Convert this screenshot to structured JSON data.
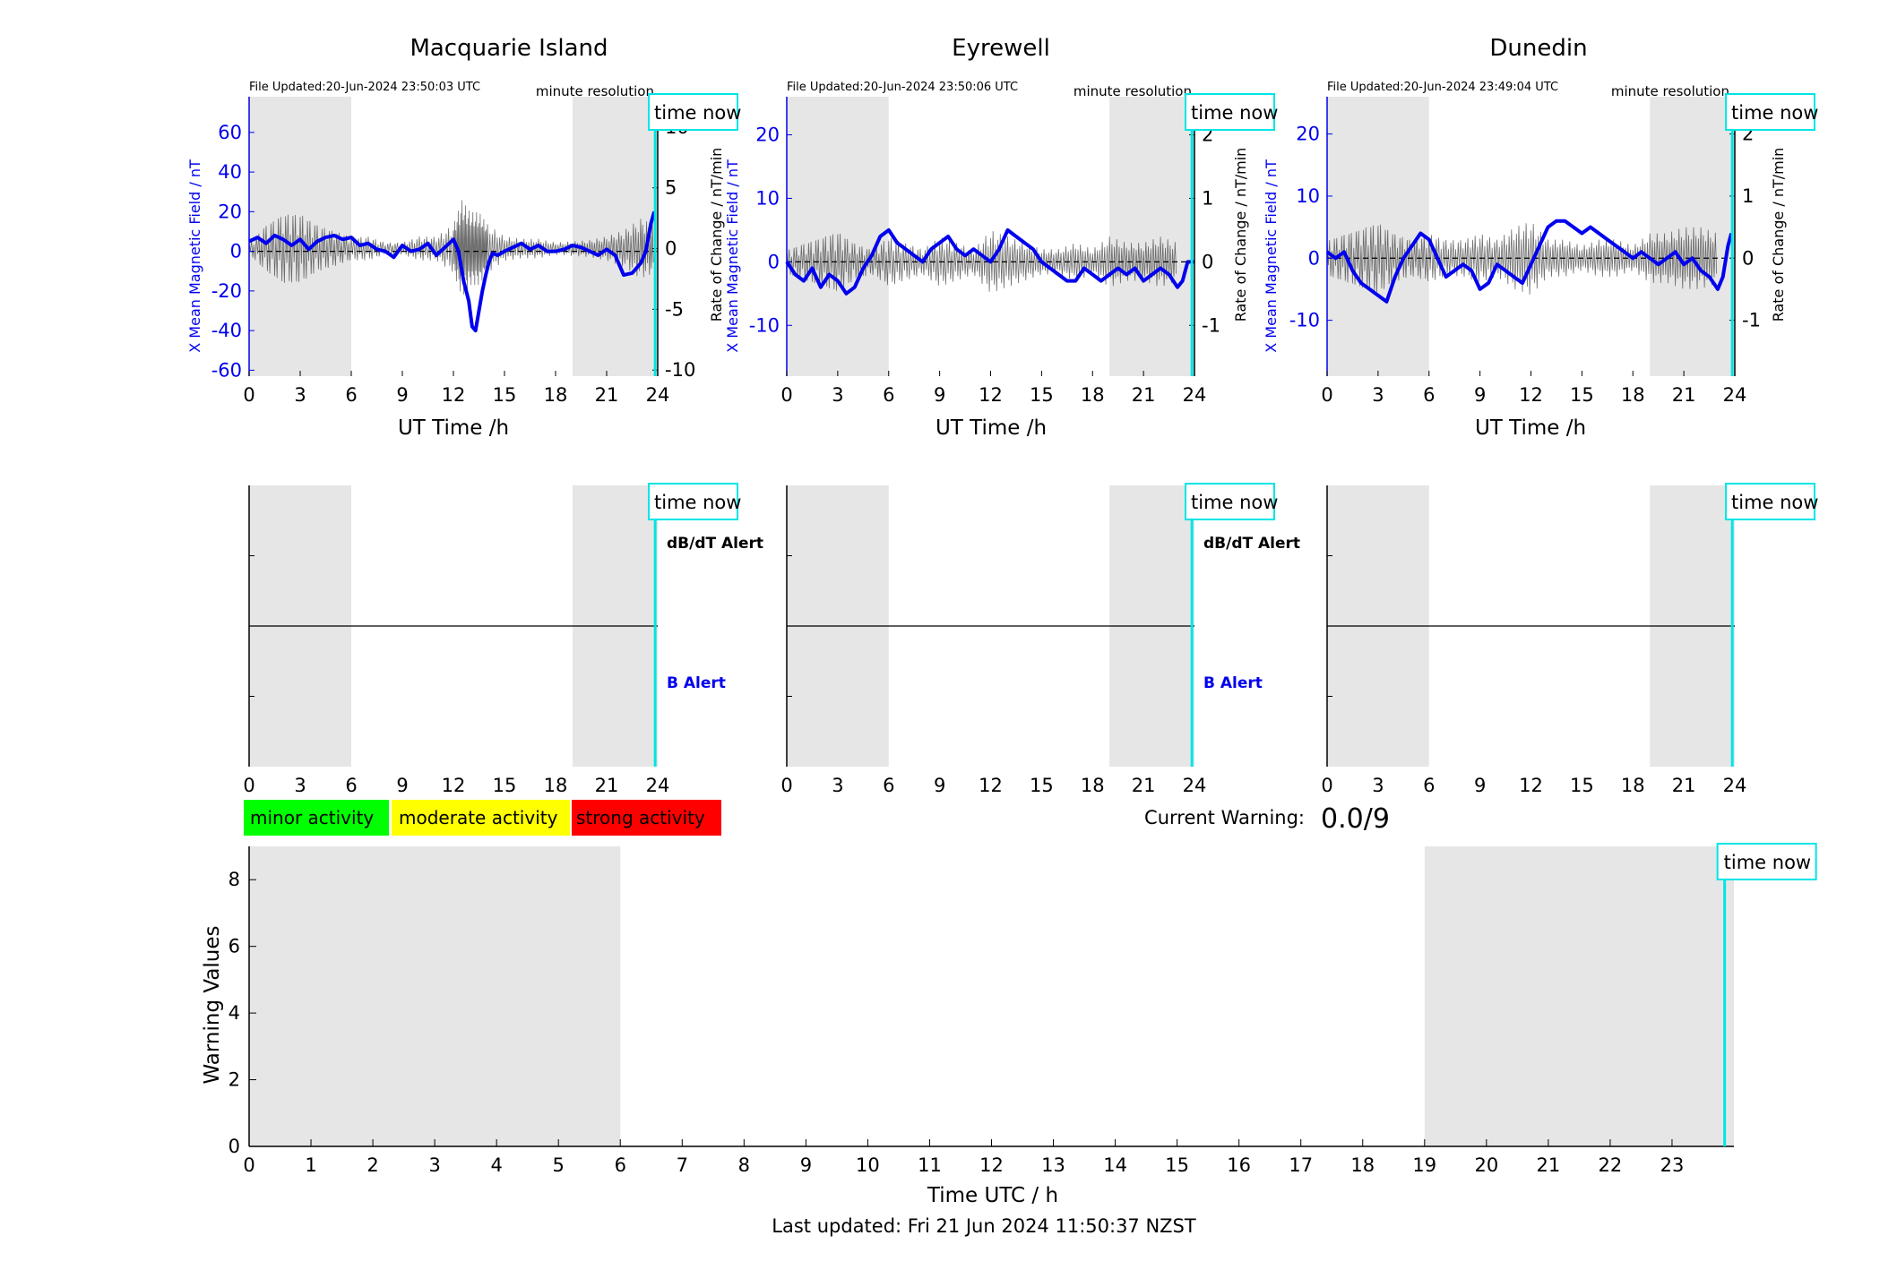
{
  "figure": {
    "last_updated": "Last updated: Fri 21 Jun 2024 11:50:37 NZST",
    "current_warning_label": "Current Warning:",
    "current_warning_value": "0.0/9",
    "time_now_label": "time now",
    "dbdt_alert_label": "dB/dT Alert",
    "b_alert_label": "B Alert",
    "colors": {
      "shade": "#e6e6e6",
      "time_now": "#00e5e5",
      "mean_field": "#0000ee",
      "rate": "#404040",
      "minor": "#00ff00",
      "moderate": "#ffff00",
      "strong": "#ff0000"
    }
  },
  "legend": {
    "minor": "minor activity",
    "moderate": "moderate activity",
    "strong": "strong activity"
  },
  "chart_data": [
    {
      "type": "line",
      "title": "Macquarie Island",
      "file_updated": "File Updated:20-Jun-2024 23:50:03 UTC",
      "resolution": "minute resolution",
      "xlabel": "UT Time /h",
      "ylabel": "X Mean Magnetic Field / nT",
      "y2label": "Rate of Change / nT/min",
      "xlim": [
        0,
        24
      ],
      "xticks": [
        0,
        3,
        6,
        9,
        12,
        15,
        18,
        21,
        24
      ],
      "ylim": [
        -63,
        78
      ],
      "yticks": [
        -60,
        -40,
        -20,
        0,
        20,
        40,
        60
      ],
      "y2lim": [
        -10.5,
        12.5
      ],
      "y2ticks": [
        -10,
        -5,
        0,
        5,
        10
      ],
      "night_shading": [
        [
          0,
          6
        ],
        [
          19,
          24
        ]
      ],
      "time_now": 23.85,
      "series": [
        {
          "axis": "left",
          "x": [
            0,
            0.5,
            1,
            1.5,
            2,
            2.5,
            3,
            3.5,
            4,
            4.5,
            5,
            5.5,
            6,
            6.5,
            7,
            7.5,
            8,
            8.5,
            9,
            9.5,
            10,
            10.5,
            11,
            11.5,
            12,
            12.3,
            12.6,
            12.9,
            13.1,
            13.3,
            13.5,
            13.7,
            13.9,
            14.1,
            14.3,
            14.6,
            15,
            15.5,
            16,
            16.5,
            17,
            17.5,
            18,
            18.5,
            19,
            19.5,
            20,
            20.5,
            21,
            21.5,
            22,
            22.5,
            23,
            23.3,
            23.6,
            23.8
          ],
          "y": [
            5,
            7,
            4,
            8,
            6,
            3,
            6,
            1,
            5,
            7,
            8,
            6,
            7,
            3,
            4,
            1,
            0,
            -3,
            3,
            0,
            1,
            4,
            -2,
            2,
            6,
            0,
            -15,
            -25,
            -38,
            -40,
            -30,
            -20,
            -12,
            -5,
            -1,
            -2,
            0,
            2,
            4,
            1,
            3,
            0,
            0,
            1,
            3,
            2,
            0,
            -2,
            1,
            -2,
            -12,
            -11,
            -6,
            0,
            14,
            20
          ]
        },
        {
          "axis": "right",
          "note": "rate of change, approximate envelope",
          "x": [
            0,
            1,
            2,
            3,
            4,
            5,
            6,
            7,
            8,
            9,
            10,
            11,
            12,
            12.5,
            13,
            13.5,
            14,
            15,
            16,
            17,
            18,
            19,
            20,
            21,
            22,
            23,
            23.8
          ],
          "y": [
            0.5,
            -2,
            3,
            -3,
            2,
            -1.5,
            1,
            -1,
            0.5,
            -0.5,
            1,
            -1,
            2,
            -4,
            3,
            -3,
            2,
            -1,
            0.8,
            -0.8,
            0.5,
            -0.6,
            0.7,
            -1,
            1.5,
            -2.5,
            2
          ]
        }
      ]
    },
    {
      "type": "line",
      "title": "Eyrewell",
      "file_updated": "File Updated:20-Jun-2024 23:50:06 UTC",
      "resolution": "minute resolution",
      "xlabel": "UT Time /h",
      "ylabel": "X Mean Magnetic Field / nT",
      "y2label": "Rate of Change / nT/min",
      "xlim": [
        0,
        24
      ],
      "xticks": [
        0,
        3,
        6,
        9,
        12,
        15,
        18,
        21,
        24
      ],
      "ylim": [
        -18,
        26
      ],
      "yticks": [
        -10,
        0,
        10,
        20
      ],
      "y2lim": [
        -1.8,
        2.6
      ],
      "y2ticks": [
        -1,
        0,
        1,
        2
      ],
      "night_shading": [
        [
          0,
          6
        ],
        [
          19,
          24
        ]
      ],
      "time_now": 23.85,
      "series": [
        {
          "axis": "left",
          "x": [
            0,
            0.5,
            1,
            1.5,
            2,
            2.5,
            3,
            3.5,
            4,
            4.5,
            5,
            5.5,
            6,
            6.5,
            7,
            7.5,
            8,
            8.5,
            9,
            9.5,
            10,
            10.5,
            11,
            11.5,
            12,
            12.5,
            13,
            13.5,
            14,
            14.5,
            15,
            15.5,
            16,
            16.5,
            17,
            17.5,
            18,
            18.5,
            19,
            19.5,
            20,
            20.5,
            21,
            21.5,
            22,
            22.5,
            23,
            23.3,
            23.6,
            24
          ],
          "y": [
            0,
            -2,
            -3,
            -1,
            -4,
            -2,
            -3,
            -5,
            -4,
            -1,
            1,
            4,
            5,
            3,
            2,
            1,
            0,
            2,
            3,
            4,
            2,
            1,
            2,
            1,
            0,
            2,
            5,
            4,
            3,
            2,
            0,
            -1,
            -2,
            -3,
            -3,
            -1,
            -2,
            -3,
            -2,
            -1,
            -2,
            -1,
            -3,
            -2,
            -1,
            -2,
            -4,
            -3,
            0,
            0
          ]
        },
        {
          "axis": "right",
          "note": "rate of change, approximate envelope",
          "x": [
            0,
            1,
            2,
            3,
            4,
            5,
            6,
            7,
            8,
            9,
            10,
            11,
            12,
            13,
            14,
            15,
            16,
            17,
            18,
            19,
            20,
            21,
            22,
            23
          ],
          "y": [
            0.2,
            -0.3,
            0.4,
            -0.5,
            0.3,
            -0.2,
            0.4,
            -0.3,
            0.2,
            -0.4,
            0.3,
            -0.2,
            0.5,
            -0.4,
            0.3,
            -0.2,
            0.2,
            -0.3,
            0.2,
            -0.4,
            0.3,
            -0.3,
            0.4,
            -0.3
          ]
        }
      ]
    },
    {
      "type": "line",
      "title": "Dunedin",
      "file_updated": "File Updated:20-Jun-2024 23:49:04 UTC",
      "resolution": "minute resolution",
      "xlabel": "UT Time /h",
      "ylabel": "X Mean Magnetic Field / nT",
      "y2label": "Rate of Change / nT/min",
      "xlim": [
        0,
        24
      ],
      "xticks": [
        0,
        3,
        6,
        9,
        12,
        15,
        18,
        21,
        24
      ],
      "ylim": [
        -19,
        26
      ],
      "yticks": [
        -10,
        0,
        10,
        20
      ],
      "y2lim": [
        -1.9,
        2.6
      ],
      "y2ticks": [
        -1,
        0,
        1,
        2
      ],
      "night_shading": [
        [
          0,
          6
        ],
        [
          19,
          24
        ]
      ],
      "time_now": 23.85,
      "series": [
        {
          "axis": "left",
          "x": [
            0,
            0.5,
            1,
            1.5,
            2,
            2.5,
            3,
            3.5,
            4,
            4.5,
            5,
            5.5,
            6,
            6.5,
            7,
            7.5,
            8,
            8.5,
            9,
            9.5,
            10,
            10.5,
            11,
            11.5,
            12,
            12.5,
            13,
            13.5,
            14,
            14.5,
            15,
            15.5,
            16,
            16.5,
            17,
            17.5,
            18,
            18.5,
            19,
            19.5,
            20,
            20.5,
            21,
            21.5,
            22,
            22.5,
            23,
            23.3,
            23.6,
            23.8
          ],
          "y": [
            1,
            0,
            1,
            -2,
            -4,
            -5,
            -6,
            -7,
            -3,
            0,
            2,
            4,
            3,
            0,
            -3,
            -2,
            -1,
            -2,
            -5,
            -4,
            -1,
            -2,
            -3,
            -4,
            -1,
            2,
            5,
            6,
            6,
            5,
            4,
            5,
            4,
            3,
            2,
            1,
            0,
            1,
            0,
            -1,
            0,
            1,
            -1,
            0,
            -2,
            -3,
            -5,
            -3,
            2,
            4
          ]
        },
        {
          "axis": "right",
          "note": "rate of change, approximate envelope",
          "x": [
            0,
            1,
            2,
            3,
            4,
            5,
            6,
            7,
            8,
            9,
            10,
            11,
            12,
            13,
            14,
            15,
            16,
            17,
            18,
            19,
            20,
            21,
            22,
            23
          ],
          "y": [
            0.3,
            -0.4,
            0.5,
            -0.6,
            0.4,
            -0.3,
            0.4,
            -0.3,
            0.3,
            -0.4,
            0.3,
            -0.5,
            0.6,
            -0.3,
            0.3,
            -0.2,
            0.3,
            -0.3,
            0.2,
            -0.4,
            0.4,
            -0.5,
            0.5,
            -0.4
          ]
        }
      ]
    },
    {
      "type": "line",
      "title": "",
      "role": "alert",
      "station": "Macquarie Island",
      "xlim": [
        0,
        24
      ],
      "xticks": [
        0,
        3,
        6,
        9,
        12,
        15,
        18,
        21,
        24
      ],
      "night_shading": [
        [
          0,
          6
        ],
        [
          19,
          24
        ]
      ],
      "time_now": 23.85,
      "labels": [
        "dB/dT Alert",
        "B Alert"
      ],
      "series": [
        {
          "x": [
            0,
            24
          ],
          "y": [
            0,
            0
          ]
        }
      ]
    },
    {
      "type": "line",
      "title": "",
      "role": "alert",
      "station": "Eyrewell",
      "xlim": [
        0,
        24
      ],
      "xticks": [
        0,
        3,
        6,
        9,
        12,
        15,
        18,
        21,
        24
      ],
      "night_shading": [
        [
          0,
          6
        ],
        [
          19,
          24
        ]
      ],
      "time_now": 23.85,
      "labels": [
        "dB/dT Alert",
        "B Alert"
      ],
      "series": [
        {
          "x": [
            0,
            24
          ],
          "y": [
            0,
            0
          ]
        }
      ]
    },
    {
      "type": "line",
      "title": "",
      "role": "alert",
      "station": "Dunedin",
      "xlim": [
        0,
        24
      ],
      "xticks": [
        0,
        3,
        6,
        9,
        12,
        15,
        18,
        21,
        24
      ],
      "night_shading": [
        [
          0,
          6
        ],
        [
          19,
          24
        ]
      ],
      "time_now": 23.85,
      "labels": [],
      "series": [
        {
          "x": [
            0,
            24
          ],
          "y": [
            0,
            0
          ]
        }
      ]
    },
    {
      "type": "bar",
      "title": "",
      "role": "warning",
      "xlabel": "Time UTC / h",
      "ylabel": "Warning Values",
      "xlim": [
        0,
        24
      ],
      "xticks": [
        0,
        1,
        2,
        3,
        4,
        5,
        6,
        7,
        8,
        9,
        10,
        11,
        12,
        13,
        14,
        15,
        16,
        17,
        18,
        19,
        20,
        21,
        22,
        23
      ],
      "ylim": [
        0,
        9
      ],
      "yticks": [
        0,
        2,
        4,
        6,
        8
      ],
      "night_shading": [
        [
          0,
          6
        ],
        [
          19,
          24
        ]
      ],
      "time_now": 23.85,
      "series": [
        {
          "x": [],
          "y": []
        }
      ]
    }
  ]
}
